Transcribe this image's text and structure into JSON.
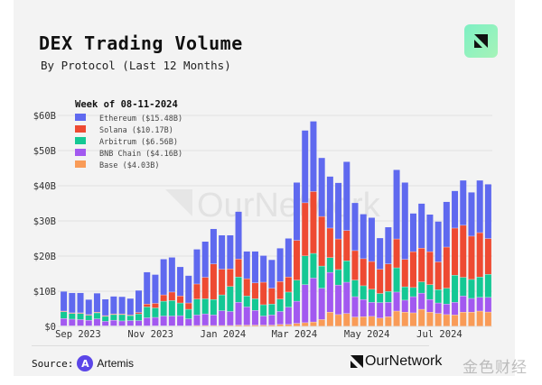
{
  "header": {
    "title": "DEX Trading Volume",
    "subtitle": "By Protocol (Last 12 Months)"
  },
  "footer": {
    "source_label": "Source:",
    "source_name": "Artemis",
    "brand": "OurNetwork",
    "overlay_watermark": "金色财经"
  },
  "chart_data": {
    "type": "bar",
    "stacked": true,
    "title": "",
    "xlabel": "",
    "ylabel": "",
    "ylim": [
      0,
      60
    ],
    "grid": true,
    "legend_position": "top-left",
    "legend_title": "Week of 08-11-2024",
    "watermark": "OurNetwork",
    "y_ticks": [
      "$0",
      "$10B",
      "$20B",
      "$30B",
      "$40B",
      "$50B",
      "$60B"
    ],
    "x_ticks": [
      {
        "label": "Sep 2023",
        "date": "2023-09-01"
      },
      {
        "label": "Nov 2023",
        "date": "2023-11-01"
      },
      {
        "label": "Jan 2024",
        "date": "2024-01-01"
      },
      {
        "label": "Mar 2024",
        "date": "2024-03-01"
      },
      {
        "label": "May 2024",
        "date": "2024-05-01"
      },
      {
        "label": "Jul 2024",
        "date": "2024-07-01"
      }
    ],
    "categories": [
      "2023-08-20",
      "2023-08-27",
      "2023-09-03",
      "2023-09-10",
      "2023-09-17",
      "2023-09-24",
      "2023-10-01",
      "2023-10-08",
      "2023-10-15",
      "2023-10-22",
      "2023-10-29",
      "2023-11-05",
      "2023-11-12",
      "2023-11-19",
      "2023-11-26",
      "2023-12-03",
      "2023-12-10",
      "2023-12-17",
      "2023-12-24",
      "2023-12-31",
      "2024-01-07",
      "2024-01-14",
      "2024-01-21",
      "2024-01-28",
      "2024-02-04",
      "2024-02-11",
      "2024-02-18",
      "2024-02-25",
      "2024-03-03",
      "2024-03-10",
      "2024-03-17",
      "2024-03-24",
      "2024-03-31",
      "2024-04-07",
      "2024-04-14",
      "2024-04-21",
      "2024-04-28",
      "2024-05-05",
      "2024-05-12",
      "2024-05-19",
      "2024-05-26",
      "2024-06-02",
      "2024-06-09",
      "2024-06-16",
      "2024-06-23",
      "2024-06-30",
      "2024-07-07",
      "2024-07-14",
      "2024-07-21",
      "2024-07-28",
      "2024-08-04",
      "2024-08-11"
    ],
    "series": [
      {
        "name": "Base",
        "legend": "Base ($4.03B)",
        "color": "#f99b57",
        "values": [
          0.1,
          0.1,
          0.1,
          0.1,
          0.1,
          0.1,
          0.1,
          0.1,
          0.1,
          0.1,
          0.1,
          0.1,
          0.1,
          0.1,
          0.1,
          0.1,
          0.2,
          0.2,
          0.2,
          0.2,
          0.2,
          0.3,
          0.3,
          0.3,
          0.3,
          0.3,
          0.5,
          0.5,
          0.8,
          1.0,
          1.2,
          1.9,
          4.0,
          3.3,
          3.6,
          2.6,
          2.7,
          2.8,
          2.3,
          2.7,
          4.3,
          4.0,
          3.8,
          4.8,
          4.0,
          3.6,
          3.3,
          3.2,
          4.0,
          4.0,
          4.3,
          4.03
        ]
      },
      {
        "name": "BNB Chain",
        "legend": "BNB Chain ($4.16B)",
        "color": "#a259f0",
        "values": [
          2.1,
          1.9,
          1.8,
          1.6,
          2.0,
          1.3,
          1.6,
          1.4,
          1.5,
          1.5,
          2.3,
          2.4,
          2.8,
          2.8,
          2.9,
          2.0,
          3.0,
          3.3,
          3.0,
          4.2,
          4.0,
          6.5,
          5.2,
          4.2,
          2.6,
          2.9,
          3.7,
          4.9,
          6.3,
          10.8,
          12.5,
          8.9,
          11.3,
          8.4,
          8.9,
          5.8,
          4.9,
          4.0,
          4.4,
          4.1,
          5.4,
          3.4,
          4.6,
          4.6,
          3.6,
          3.0,
          3.0,
          3.6,
          4.6,
          3.9,
          3.9,
          4.16
        ]
      },
      {
        "name": "Arbitrum",
        "legend": "Arbitrum ($6.56B)",
        "color": "#14c894",
        "values": [
          1.9,
          1.6,
          1.7,
          1.4,
          1.7,
          1.4,
          1.6,
          1.8,
          1.4,
          1.9,
          3.1,
          2.7,
          4.2,
          4.4,
          3.6,
          2.7,
          4.5,
          4.3,
          4.4,
          4.5,
          7.1,
          7.2,
          3.1,
          3.3,
          3.2,
          3.1,
          3.5,
          4.3,
          6.0,
          8.2,
          7.0,
          6.3,
          4.2,
          4.4,
          6.1,
          4.7,
          3.9,
          3.7,
          2.6,
          3.1,
          6.9,
          3.8,
          2.6,
          3.2,
          4.2,
          3.8,
          4.5,
          7.7,
          5.3,
          5.4,
          5.8,
          6.56
        ]
      },
      {
        "name": "Solana",
        "legend": "Solana ($10.17B)",
        "color": "#ee4a32",
        "values": [
          0.2,
          0.2,
          0.2,
          0.2,
          0.2,
          0.2,
          0.2,
          0.2,
          0.2,
          0.4,
          0.8,
          1.3,
          1.8,
          2.4,
          2.0,
          1.8,
          4.3,
          6.1,
          10.1,
          7.3,
          5.0,
          5.1,
          4.9,
          4.5,
          6.4,
          4.5,
          5.0,
          4.3,
          11.3,
          15.1,
          17.6,
          14.1,
          8.4,
          8.7,
          8.6,
          8.4,
          7.7,
          7.9,
          6.9,
          7.8,
          8.2,
          7.8,
          10.2,
          9.6,
          9.4,
          7.9,
          11.7,
          13.4,
          14.8,
          12.3,
          12.6,
          10.17
        ]
      },
      {
        "name": "Ethereum",
        "legend": "Ethereum ($15.48B)",
        "color": "#5f69ef",
        "values": [
          5.6,
          5.7,
          5.7,
          4.3,
          5.4,
          4.7,
          5.0,
          4.9,
          4.7,
          6.3,
          9.1,
          8.2,
          10.2,
          9.9,
          8.3,
          7.8,
          9.9,
          10.2,
          10.0,
          9.7,
          9.6,
          13.5,
          7.8,
          9.0,
          7.6,
          8.1,
          9.5,
          11.0,
          16.5,
          20.6,
          20.0,
          16.7,
          14.7,
          16.0,
          19.6,
          13.6,
          12.7,
          12.5,
          8.9,
          10.5,
          19.7,
          21.9,
          10.9,
          12.7,
          10.6,
          11.5,
          12.9,
          10.6,
          12.8,
          12.5,
          14.9,
          15.48
        ]
      }
    ]
  }
}
